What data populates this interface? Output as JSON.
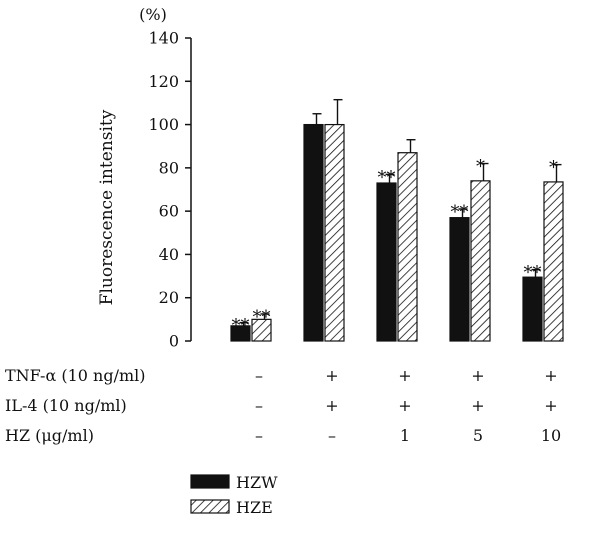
{
  "chart_data": {
    "type": "bar",
    "ylabel": "Fluorescence intensity",
    "yunit": "(%)",
    "ylim": [
      0,
      140
    ],
    "yticks": [
      0,
      20,
      40,
      60,
      80,
      100,
      120,
      140
    ],
    "groups": 5,
    "series": [
      {
        "name": "HZW",
        "fill": "#111111",
        "values": [
          7,
          100,
          73,
          57,
          29.5
        ],
        "errors": [
          1.5,
          5,
          4,
          4,
          3.5
        ],
        "significance": [
          "**",
          "",
          "**",
          "**",
          "**"
        ]
      },
      {
        "name": "HZE",
        "fill": "hatch",
        "values": [
          10,
          100,
          87,
          74,
          73.5
        ],
        "errors": [
          2.5,
          11.5,
          6,
          8,
          8
        ],
        "significance": [
          "**",
          "",
          "",
          "*",
          "*"
        ]
      }
    ],
    "conditions": [
      {
        "label": "TNF-α (10 ng/ml)",
        "values": [
          "–",
          "+",
          "+",
          "+",
          "+"
        ]
      },
      {
        "label": "IL-4 (10 ng/ml)",
        "values": [
          "–",
          "+",
          "+",
          "+",
          "+"
        ]
      },
      {
        "label": "HZ (μg/ml)",
        "values": [
          "–",
          "–",
          "1",
          "5",
          "10"
        ]
      }
    ],
    "legend": {
      "placement": "bottom-left"
    }
  }
}
